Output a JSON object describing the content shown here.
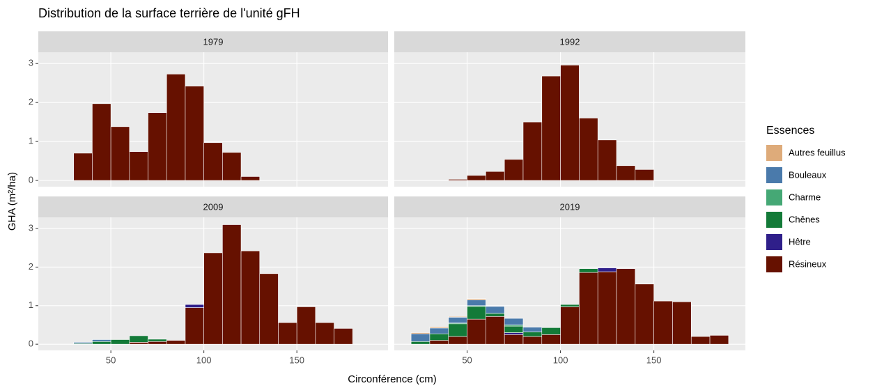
{
  "title": "Distribution de la surface terrière de l'unité gFH",
  "x_label": "Circonférence (cm)",
  "y_label": "GHA (m²/ha)",
  "legend_title": "Essences",
  "chart_data": [
    {
      "type": "bar",
      "stacked": true,
      "title": "1979",
      "x": [
        35,
        45,
        55,
        65,
        75,
        85,
        95,
        105,
        115,
        125
      ],
      "series": [
        {
          "name": "Autres feuillus",
          "color": "#deab7a",
          "values": [
            null,
            null,
            null,
            null,
            null,
            null,
            null,
            null,
            null,
            null
          ]
        },
        {
          "name": "Bouleaux",
          "color": "#4a7aab",
          "values": [
            null,
            null,
            null,
            null,
            null,
            null,
            null,
            null,
            null,
            null
          ]
        },
        {
          "name": "Charme",
          "color": "#45a875",
          "values": [
            null,
            null,
            null,
            null,
            null,
            null,
            null,
            null,
            null,
            null
          ]
        },
        {
          "name": "Chênes",
          "color": "#137a38",
          "values": [
            null,
            null,
            null,
            null,
            null,
            null,
            null,
            null,
            null,
            null
          ]
        },
        {
          "name": "Hêtre",
          "color": "#2f1f8a",
          "values": [
            null,
            null,
            null,
            null,
            null,
            null,
            null,
            null,
            null,
            null
          ]
        },
        {
          "name": "Résineux",
          "color": "#661100",
          "values": [
            0.7,
            1.97,
            1.38,
            0.74,
            1.74,
            2.73,
            2.42,
            0.97,
            0.72,
            0.1
          ]
        }
      ],
      "xlim": [
        11,
        199
      ],
      "ylim": [
        -0.16,
        3.29
      ],
      "xticks": [
        50,
        100,
        150
      ],
      "yticks": [
        0,
        1,
        2,
        3
      ],
      "grid": true
    },
    {
      "type": "bar",
      "stacked": true,
      "title": "1992",
      "x": [
        45,
        55,
        65,
        75,
        85,
        95,
        105,
        115,
        125,
        135,
        145
      ],
      "series": [
        {
          "name": "Autres feuillus",
          "color": "#deab7a",
          "values": [
            null,
            null,
            null,
            null,
            null,
            null,
            null,
            null,
            null,
            null,
            null
          ]
        },
        {
          "name": "Bouleaux",
          "color": "#4a7aab",
          "values": [
            null,
            null,
            null,
            null,
            null,
            null,
            null,
            null,
            null,
            null,
            null
          ]
        },
        {
          "name": "Charme",
          "color": "#45a875",
          "values": [
            null,
            null,
            null,
            null,
            null,
            null,
            null,
            null,
            null,
            null,
            null
          ]
        },
        {
          "name": "Chênes",
          "color": "#137a38",
          "values": [
            null,
            null,
            null,
            null,
            null,
            null,
            null,
            null,
            null,
            null,
            null
          ]
        },
        {
          "name": "Hêtre",
          "color": "#2f1f8a",
          "values": [
            null,
            null,
            null,
            null,
            null,
            null,
            null,
            null,
            null,
            null,
            null
          ]
        },
        {
          "name": "Résineux",
          "color": "#661100",
          "values": [
            0.03,
            0.13,
            0.23,
            0.54,
            1.5,
            2.68,
            2.96,
            1.6,
            1.04,
            0.38,
            0.28
          ]
        }
      ],
      "xlim": [
        11,
        199
      ],
      "ylim": [
        -0.16,
        3.29
      ],
      "xticks": [
        50,
        100,
        150
      ],
      "yticks": [
        0,
        1,
        2,
        3
      ],
      "grid": true
    },
    {
      "type": "bar",
      "stacked": true,
      "title": "2009",
      "x": [
        35,
        45,
        55,
        65,
        75,
        85,
        95,
        105,
        115,
        125,
        135,
        145,
        155,
        165,
        175
      ],
      "series": [
        {
          "name": "Autres feuillus",
          "color": "#deab7a",
          "values": [
            null,
            null,
            null,
            null,
            null,
            null,
            null,
            null,
            null,
            null,
            null,
            null,
            null,
            null,
            null
          ]
        },
        {
          "name": "Bouleaux",
          "color": "#4a7aab",
          "values": [
            0.03,
            0.05,
            null,
            null,
            null,
            null,
            null,
            null,
            null,
            null,
            null,
            null,
            null,
            null,
            null
          ]
        },
        {
          "name": "Charme",
          "color": "#45a875",
          "values": [
            null,
            null,
            null,
            null,
            null,
            null,
            null,
            null,
            null,
            null,
            null,
            null,
            null,
            null,
            null
          ]
        },
        {
          "name": "Chênes",
          "color": "#137a38",
          "values": [
            0.02,
            0.07,
            0.12,
            0.17,
            0.06,
            null,
            null,
            null,
            null,
            null,
            null,
            null,
            null,
            null,
            null
          ]
        },
        {
          "name": "Hêtre",
          "color": "#2f1f8a",
          "values": [
            null,
            null,
            null,
            null,
            null,
            null,
            0.08,
            null,
            null,
            null,
            null,
            null,
            null,
            null,
            null
          ]
        },
        {
          "name": "Résineux",
          "color": "#661100",
          "values": [
            null,
            null,
            null,
            0.05,
            0.07,
            0.1,
            0.95,
            2.37,
            3.1,
            2.42,
            1.83,
            0.56,
            0.97,
            0.56,
            0.41
          ]
        }
      ],
      "xlim": [
        11,
        199
      ],
      "ylim": [
        -0.16,
        3.29
      ],
      "xticks": [
        50,
        100,
        150
      ],
      "yticks": [
        0,
        1,
        2,
        3
      ],
      "grid": true
    },
    {
      "type": "bar",
      "stacked": true,
      "title": "2019",
      "x": [
        25,
        35,
        45,
        55,
        65,
        75,
        85,
        95,
        105,
        115,
        125,
        135,
        145,
        155,
        165,
        175,
        185
      ],
      "series": [
        {
          "name": "Autres feuillus",
          "color": "#deab7a",
          "values": [
            0.03,
            0.03,
            0.02,
            0.03,
            null,
            null,
            null,
            null,
            null,
            null,
            null,
            null,
            null,
            null,
            null,
            null,
            null
          ]
        },
        {
          "name": "Bouleaux",
          "color": "#4a7aab",
          "values": [
            0.2,
            0.15,
            0.15,
            0.15,
            0.18,
            0.17,
            0.12,
            null,
            null,
            null,
            null,
            null,
            null,
            null,
            null,
            null,
            null
          ]
        },
        {
          "name": "Charme",
          "color": "#45a875",
          "values": [
            null,
            null,
            0.02,
            0.02,
            null,
            0.03,
            null,
            null,
            null,
            null,
            null,
            null,
            null,
            null,
            null,
            null,
            null
          ]
        },
        {
          "name": "Chênes",
          "color": "#137a38",
          "values": [
            0.07,
            0.17,
            0.33,
            0.33,
            0.08,
            0.17,
            0.12,
            0.18,
            0.06,
            0.1,
            null,
            null,
            null,
            null,
            null,
            null,
            null
          ]
        },
        {
          "name": "Hêtre",
          "color": "#2f1f8a",
          "values": [
            null,
            null,
            null,
            null,
            null,
            0.05,
            null,
            null,
            null,
            null,
            0.1,
            null,
            null,
            null,
            null,
            null,
            null
          ]
        },
        {
          "name": "Résineux",
          "color": "#661100",
          "values": [
            null,
            0.1,
            0.2,
            0.65,
            0.72,
            0.25,
            0.2,
            0.25,
            0.97,
            1.86,
            1.88,
            1.96,
            1.56,
            1.12,
            1.1,
            0.2,
            0.23
          ]
        }
      ],
      "xlim": [
        11,
        199
      ],
      "ylim": [
        -0.16,
        3.29
      ],
      "xticks": [
        50,
        100,
        150
      ],
      "yticks": [
        0,
        1,
        2,
        3
      ],
      "grid": true
    }
  ]
}
